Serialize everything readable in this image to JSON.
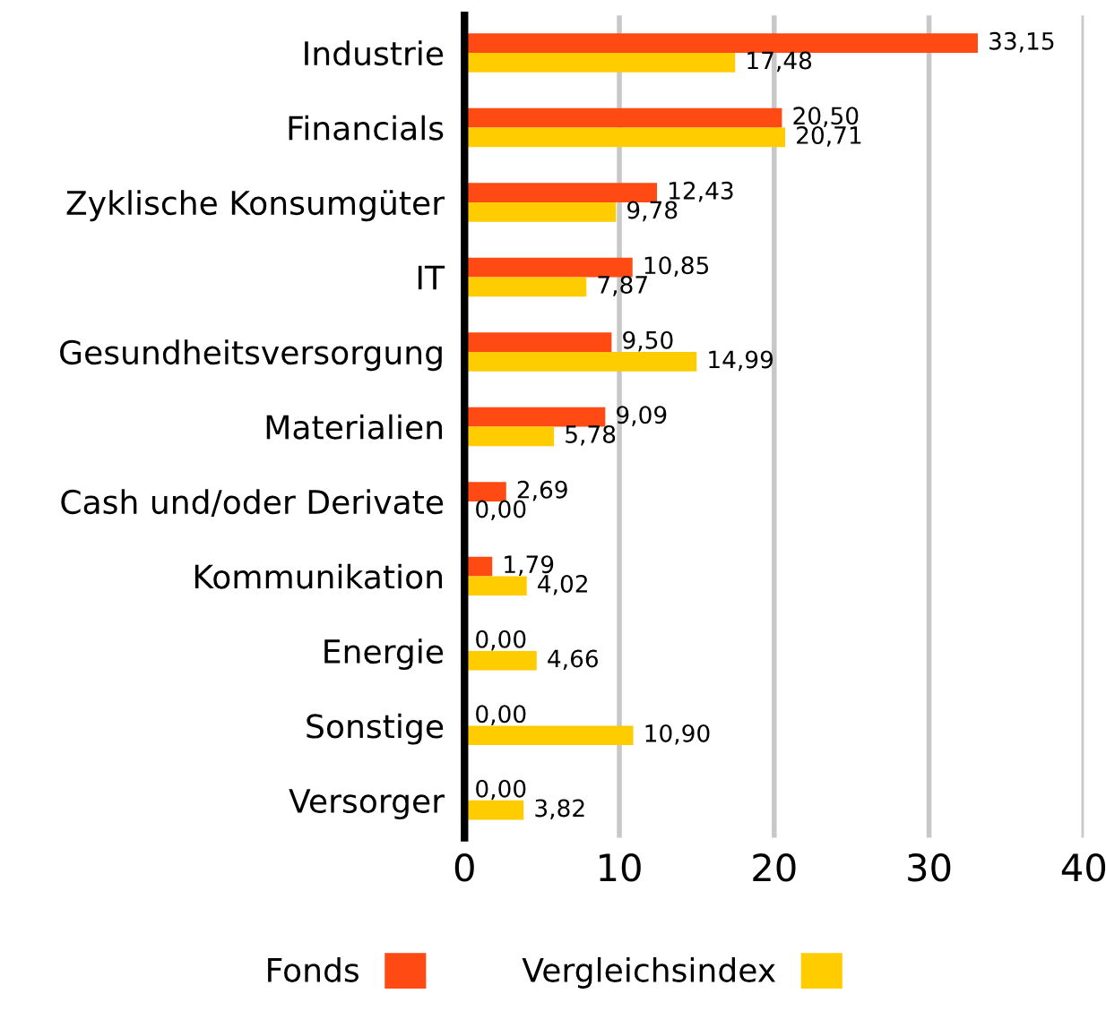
{
  "chart_data": {
    "type": "bar",
    "orientation": "horizontal",
    "categories": [
      "Industrie",
      "Financials",
      "Zyklische Konsumgüter",
      "IT",
      "Gesundheitsversorgung",
      "Materialien",
      "Cash und/oder Derivate",
      "Kommunikation",
      "Energie",
      "Sonstige",
      "Versorger"
    ],
    "series": [
      {
        "name": "Fonds",
        "color": "#ff4a14",
        "values": [
          33.15,
          20.5,
          12.43,
          10.85,
          9.5,
          9.09,
          2.69,
          1.79,
          0.0,
          0.0,
          0.0
        ],
        "value_labels": [
          "33,15",
          "20,50",
          "12,43",
          "10,85",
          "9,50",
          "9,09",
          "2,69",
          "1,79",
          "0,00",
          "0,00",
          "0,00"
        ]
      },
      {
        "name": "Vergleichsindex",
        "color": "#ffcc00",
        "values": [
          17.48,
          20.71,
          9.78,
          7.87,
          14.99,
          5.78,
          0.0,
          4.02,
          4.66,
          10.9,
          3.82
        ],
        "value_labels": [
          "17,48",
          "20,71",
          "9,78",
          "7,87",
          "14,99",
          "5,78",
          "0,00",
          "4,02",
          "4,66",
          "10,90",
          "3,82"
        ]
      }
    ],
    "xlim": [
      0,
      40
    ],
    "xticks": [
      0,
      10,
      20,
      30,
      40
    ],
    "grid": "x",
    "legend": "bottom"
  }
}
